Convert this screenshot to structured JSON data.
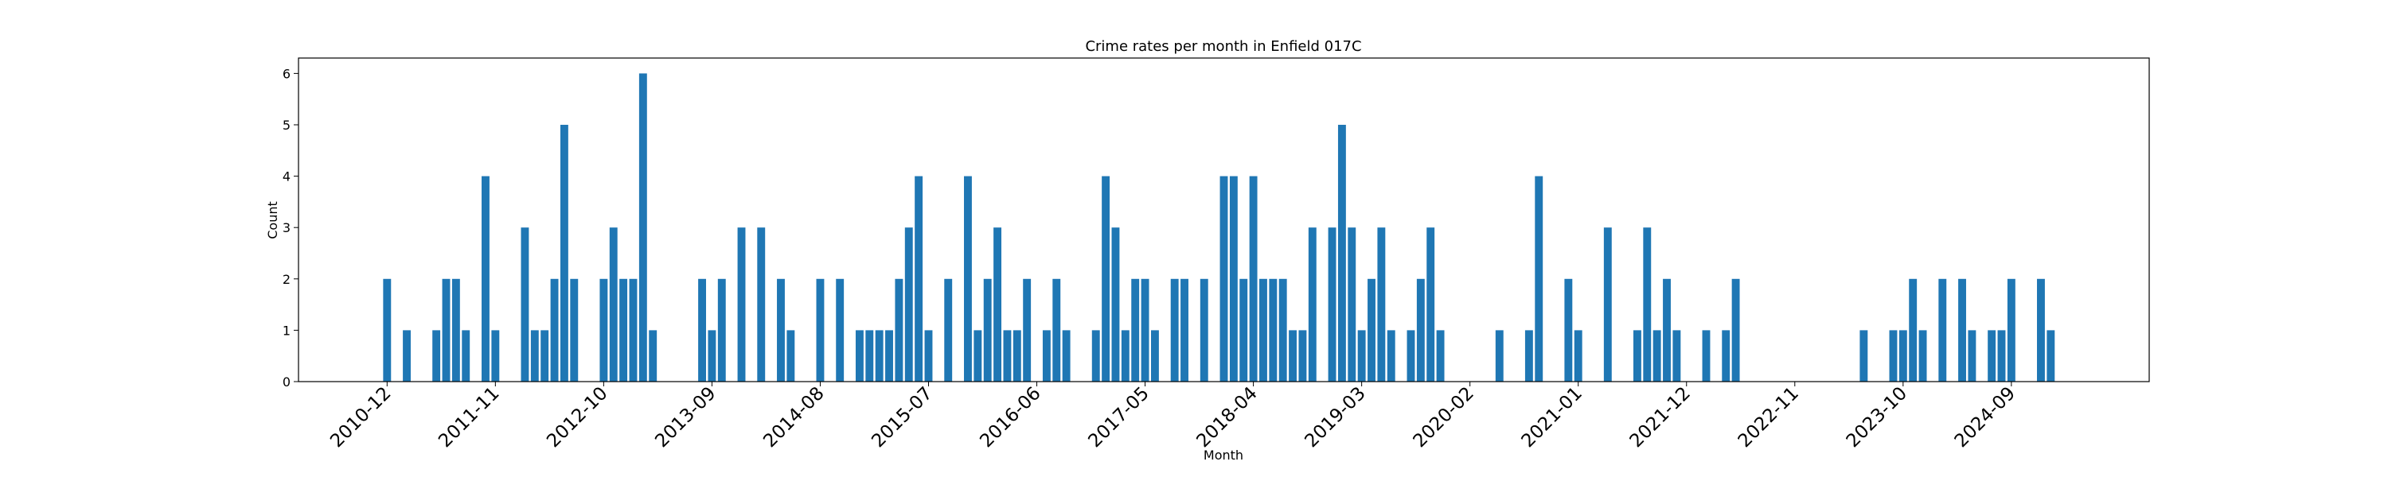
{
  "chart_data": {
    "type": "bar",
    "title": "Crime rates per month in Enfield 017C",
    "xlabel": "Month",
    "ylabel": "Count",
    "color": "#1f77b4",
    "x": [
      "2010-12",
      "2011-02",
      "2011-05",
      "2011-06",
      "2011-07",
      "2011-08",
      "2011-10",
      "2011-11",
      "2012-02",
      "2012-03",
      "2012-04",
      "2012-05",
      "2012-06",
      "2012-07",
      "2012-10",
      "2012-11",
      "2012-12",
      "2013-01",
      "2013-02",
      "2013-03",
      "2013-08",
      "2013-09",
      "2013-10",
      "2013-12",
      "2014-02",
      "2014-04",
      "2014-05",
      "2014-08",
      "2014-10",
      "2014-12",
      "2015-01",
      "2015-02",
      "2015-03",
      "2015-04",
      "2015-05",
      "2015-06",
      "2015-07",
      "2015-09",
      "2015-11",
      "2015-12",
      "2016-01",
      "2016-02",
      "2016-03",
      "2016-04",
      "2016-05",
      "2016-07",
      "2016-08",
      "2016-09",
      "2016-12",
      "2017-01",
      "2017-02",
      "2017-03",
      "2017-04",
      "2017-05",
      "2017-06",
      "2017-08",
      "2017-09",
      "2017-11",
      "2018-01",
      "2018-02",
      "2018-03",
      "2018-04",
      "2018-05",
      "2018-06",
      "2018-07",
      "2018-08",
      "2018-09",
      "2018-10",
      "2018-12",
      "2019-01",
      "2019-02",
      "2019-03",
      "2019-04",
      "2019-05",
      "2019-06",
      "2019-08",
      "2019-09",
      "2019-10",
      "2019-11",
      "2020-05",
      "2020-08",
      "2020-09",
      "2020-12",
      "2021-01",
      "2021-04",
      "2021-07",
      "2021-08",
      "2021-09",
      "2021-10",
      "2021-11",
      "2022-02",
      "2022-04",
      "2022-05",
      "2023-06",
      "2023-09",
      "2023-10",
      "2023-11",
      "2023-12",
      "2024-02",
      "2024-04",
      "2024-05",
      "2024-07",
      "2024-08",
      "2024-09",
      "2024-12",
      "2025-01"
    ],
    "values": [
      2,
      1,
      1,
      2,
      2,
      1,
      4,
      1,
      3,
      1,
      1,
      2,
      5,
      2,
      2,
      3,
      2,
      2,
      6,
      1,
      2,
      1,
      2,
      3,
      3,
      2,
      1,
      2,
      2,
      1,
      1,
      1,
      1,
      2,
      3,
      4,
      1,
      2,
      4,
      1,
      2,
      3,
      1,
      1,
      2,
      1,
      2,
      1,
      1,
      4,
      3,
      1,
      2,
      2,
      1,
      2,
      2,
      2,
      4,
      4,
      2,
      4,
      2,
      2,
      2,
      1,
      1,
      3,
      3,
      5,
      3,
      1,
      2,
      3,
      1,
      1,
      2,
      3,
      1,
      1,
      1,
      4,
      2,
      1,
      3,
      1,
      3,
      1,
      2,
      1,
      1,
      1,
      2,
      1,
      1,
      1,
      2,
      1,
      2,
      2,
      1,
      1,
      1,
      2,
      2,
      1
    ],
    "xlim": [
      "2010-03",
      "2025-11"
    ],
    "xticks": [
      "2010-12",
      "2011-11",
      "2012-10",
      "2013-09",
      "2014-08",
      "2015-07",
      "2016-06",
      "2017-05",
      "2018-04",
      "2019-03",
      "2020-02",
      "2021-01",
      "2021-12",
      "2022-11",
      "2023-10",
      "2024-09"
    ],
    "ylim": [
      0,
      6.3
    ],
    "yticks": [
      0,
      1,
      2,
      3,
      4,
      5,
      6
    ]
  }
}
